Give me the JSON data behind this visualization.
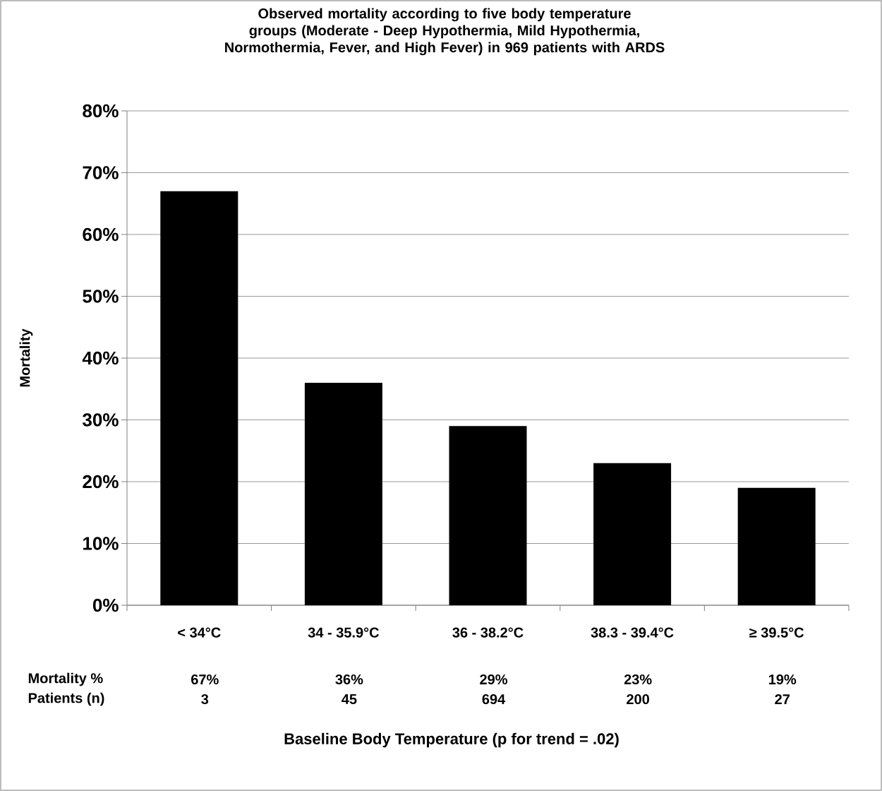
{
  "chart_data": {
    "type": "bar",
    "title": "Observed mortality according to five body temperature groups (Moderate - Deep Hypothermia, Mild Hypothermia, Normothermia, Fever, and High Fever) in 969  patients with ARDS",
    "ylabel": "Mortality",
    "categories": [
      "< 34°C",
      "34 - 35.9°C",
      "36 - 38.2°C",
      "38.3 - 39.4°C",
      "≥ 39.5°C"
    ],
    "values": [
      67,
      36,
      29,
      23,
      19
    ],
    "value_labels": [
      "67%",
      "36%",
      "29%",
      "23%",
      "19%"
    ],
    "color": "#000000",
    "ylim": [
      0,
      80
    ],
    "yticks": [
      {
        "value": 0,
        "label": "0%"
      },
      {
        "value": 10,
        "label": "10%"
      },
      {
        "value": 20,
        "label": "20%"
      },
      {
        "value": 30,
        "label": "30%"
      },
      {
        "value": 40,
        "label": "40%"
      },
      {
        "value": 50,
        "label": "50%"
      },
      {
        "value": 60,
        "label": "60%"
      },
      {
        "value": 70,
        "label": "70%"
      },
      {
        "value": 80,
        "label": "80%"
      }
    ],
    "grid": "y",
    "annotations": [
      "Mortality %",
      "Patients (n)",
      "3",
      "45",
      "694",
      "200",
      "27",
      "Baseline Body Temperature (p for trend = .02)"
    ]
  }
}
